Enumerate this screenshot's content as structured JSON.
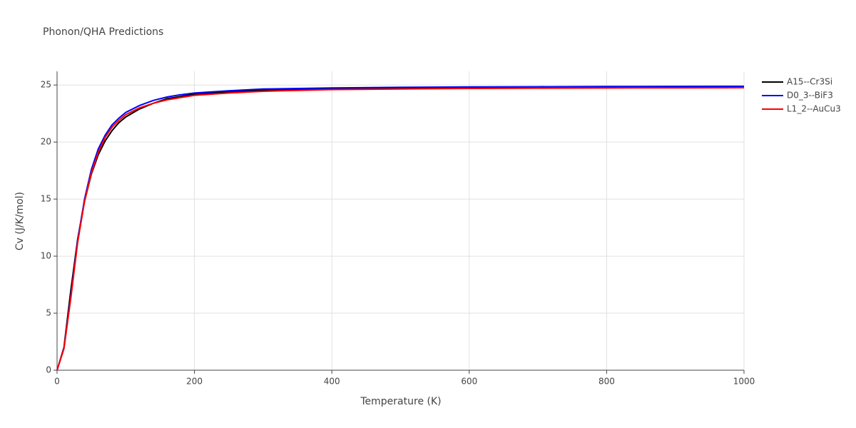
{
  "chart_data": {
    "type": "line",
    "title": "Phonon/QHA Predictions",
    "x_label": "Temperature (K)",
    "y_label": "Cv (J/K/mol)",
    "x": [
      0,
      10,
      20,
      30,
      40,
      50,
      60,
      70,
      80,
      90,
      100,
      120,
      140,
      160,
      180,
      200,
      250,
      300,
      400,
      500,
      600,
      700,
      800,
      900,
      1000
    ],
    "series": [
      {
        "name": "A15--Cr3Si",
        "color": "#000000",
        "values": [
          0,
          2.0,
          7.0,
          11.5,
          14.8,
          17.2,
          18.9,
          20.1,
          21.0,
          21.7,
          22.2,
          22.9,
          23.4,
          23.8,
          24.0,
          24.2,
          24.4,
          24.55,
          24.7,
          24.75,
          24.8,
          24.82,
          24.84,
          24.85,
          24.86
        ]
      },
      {
        "name": "D0_3--BiF3",
        "color": "#0000ff",
        "values": [
          0,
          1.9,
          6.5,
          11.4,
          15.0,
          17.6,
          19.4,
          20.6,
          21.5,
          22.1,
          22.6,
          23.2,
          23.65,
          23.95,
          24.15,
          24.3,
          24.5,
          24.65,
          24.75,
          24.8,
          24.83,
          24.85,
          24.87,
          24.88,
          24.89
        ]
      },
      {
        "name": "L1_2--AuCu3",
        "color": "#ff0000",
        "values": [
          0,
          1.9,
          6.3,
          11.2,
          14.8,
          17.3,
          19.1,
          20.4,
          21.3,
          21.9,
          22.4,
          23.0,
          23.4,
          23.7,
          23.9,
          24.1,
          24.3,
          24.45,
          24.6,
          24.65,
          24.7,
          24.72,
          24.74,
          24.75,
          24.76
        ]
      }
    ],
    "xlim": [
      0,
      1000
    ],
    "xticks": [
      0,
      200,
      400,
      600,
      800,
      1000
    ],
    "ylim": [
      0,
      26.2
    ],
    "yticks": [
      0,
      5,
      10,
      15,
      20,
      25
    ],
    "grid": true,
    "legend": "right"
  }
}
